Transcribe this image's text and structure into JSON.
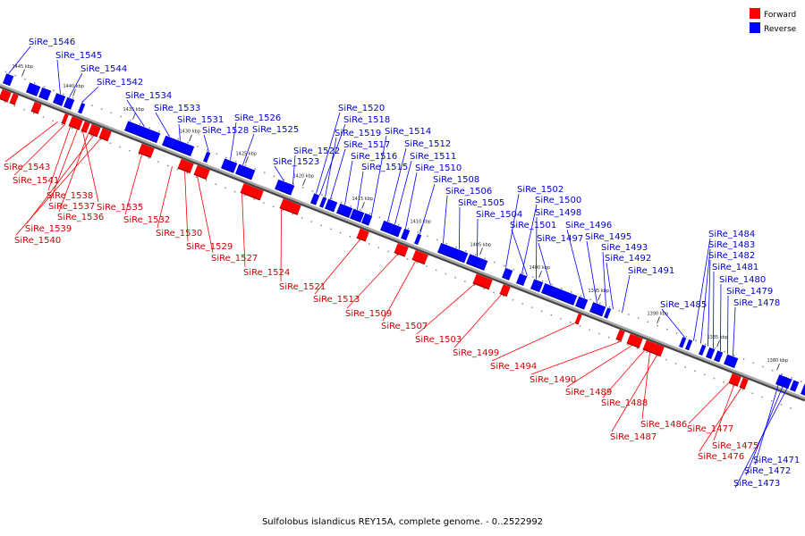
{
  "caption": "Sulfolobus islandicus REY15A, complete genome. - 0..2522992",
  "legend": [
    {
      "label": "Forward",
      "color": "#ff0000"
    },
    {
      "label": "Reverse",
      "color": "#0000ff"
    }
  ],
  "colors": {
    "forward": "#ff0000",
    "reverse": "#0000ff",
    "backbone": "#666666"
  },
  "ticks": [
    "1445 kbp",
    "1440 kbp",
    "1435 kbp",
    "1430 kbp",
    "1425 kbp",
    "1420 kbp",
    "1415 kbp",
    "1410 kbp",
    "1405 kbp",
    "1400 kbp",
    "1395 kbp",
    "1390 kbp",
    "1385 kbp",
    "1380 kbp"
  ],
  "genes": [
    {
      "name": "SiRe_1546",
      "strand": "reverse"
    },
    {
      "name": "SiRe_1545",
      "strand": "reverse"
    },
    {
      "name": "SiRe_1544",
      "strand": "reverse"
    },
    {
      "name": "SiRe_1542",
      "strand": "reverse"
    },
    {
      "name": "SiRe_1534",
      "strand": "reverse"
    },
    {
      "name": "SiRe_1533",
      "strand": "reverse"
    },
    {
      "name": "SiRe_1531",
      "strand": "reverse"
    },
    {
      "name": "SiRe_1528",
      "strand": "reverse"
    },
    {
      "name": "SiRe_1526",
      "strand": "reverse"
    },
    {
      "name": "SiRe_1525",
      "strand": "reverse"
    },
    {
      "name": "SiRe_1523",
      "strand": "reverse"
    },
    {
      "name": "SiRe_1522",
      "strand": "reverse"
    },
    {
      "name": "SiRe_1520",
      "strand": "reverse"
    },
    {
      "name": "SiRe_1518",
      "strand": "reverse"
    },
    {
      "name": "SiRe_1519",
      "strand": "reverse"
    },
    {
      "name": "SiRe_1517",
      "strand": "reverse"
    },
    {
      "name": "SiRe_1516",
      "strand": "reverse"
    },
    {
      "name": "SiRe_1515",
      "strand": "reverse"
    },
    {
      "name": "SiRe_1514",
      "strand": "reverse"
    },
    {
      "name": "SiRe_1512",
      "strand": "reverse"
    },
    {
      "name": "SiRe_1511",
      "strand": "reverse"
    },
    {
      "name": "SiRe_1510",
      "strand": "reverse"
    },
    {
      "name": "SiRe_1508",
      "strand": "reverse"
    },
    {
      "name": "SiRe_1506",
      "strand": "reverse"
    },
    {
      "name": "SiRe_1505",
      "strand": "reverse"
    },
    {
      "name": "SiRe_1504",
      "strand": "reverse"
    },
    {
      "name": "SiRe_1502",
      "strand": "reverse"
    },
    {
      "name": "SiRe_1500",
      "strand": "reverse"
    },
    {
      "name": "SiRe_1498",
      "strand": "reverse"
    },
    {
      "name": "SiRe_1501",
      "strand": "reverse"
    },
    {
      "name": "SiRe_1497",
      "strand": "reverse"
    },
    {
      "name": "SiRe_1496",
      "strand": "reverse"
    },
    {
      "name": "SiRe_1495",
      "strand": "reverse"
    },
    {
      "name": "SiRe_1493",
      "strand": "reverse"
    },
    {
      "name": "SiRe_1492",
      "strand": "reverse"
    },
    {
      "name": "SiRe_1491",
      "strand": "reverse"
    },
    {
      "name": "SiRe_1485",
      "strand": "reverse"
    },
    {
      "name": "SiRe_1484",
      "strand": "reverse"
    },
    {
      "name": "SiRe_1483",
      "strand": "reverse"
    },
    {
      "name": "SiRe_1482",
      "strand": "reverse"
    },
    {
      "name": "SiRe_1481",
      "strand": "reverse"
    },
    {
      "name": "SiRe_1480",
      "strand": "reverse"
    },
    {
      "name": "SiRe_1479",
      "strand": "reverse"
    },
    {
      "name": "SiRe_1478",
      "strand": "reverse"
    },
    {
      "name": "SiRe_1471",
      "strand": "reverse"
    },
    {
      "name": "SiRe_1472",
      "strand": "reverse"
    },
    {
      "name": "SiRe_1473",
      "strand": "reverse"
    },
    {
      "name": "SiRe_1543",
      "strand": "forward"
    },
    {
      "name": "SiRe_1541",
      "strand": "forward"
    },
    {
      "name": "SiRe_1538",
      "strand": "forward"
    },
    {
      "name": "SiRe_1537",
      "strand": "forward"
    },
    {
      "name": "SiRe_1535",
      "strand": "forward"
    },
    {
      "name": "SiRe_1536",
      "strand": "forward"
    },
    {
      "name": "SiRe_1539",
      "strand": "forward"
    },
    {
      "name": "SiRe_1540",
      "strand": "forward"
    },
    {
      "name": "SiRe_1532",
      "strand": "forward"
    },
    {
      "name": "SiRe_1530",
      "strand": "forward"
    },
    {
      "name": "SiRe_1529",
      "strand": "forward"
    },
    {
      "name": "SiRe_1527",
      "strand": "forward"
    },
    {
      "name": "SiRe_1524",
      "strand": "forward"
    },
    {
      "name": "SiRe_1521",
      "strand": "forward"
    },
    {
      "name": "SiRe_1513",
      "strand": "forward"
    },
    {
      "name": "SiRe_1509",
      "strand": "forward"
    },
    {
      "name": "SiRe_1507",
      "strand": "forward"
    },
    {
      "name": "SiRe_1503",
      "strand": "forward"
    },
    {
      "name": "SiRe_1499",
      "strand": "forward"
    },
    {
      "name": "SiRe_1494",
      "strand": "forward"
    },
    {
      "name": "SiRe_1490",
      "strand": "forward"
    },
    {
      "name": "SiRe_1489",
      "strand": "forward"
    },
    {
      "name": "SiRe_1488",
      "strand": "forward"
    },
    {
      "name": "SiRe_1486",
      "strand": "forward"
    },
    {
      "name": "SiRe_1487",
      "strand": "forward"
    },
    {
      "name": "SiRe_1477",
      "strand": "forward"
    },
    {
      "name": "SiRe_1475",
      "strand": "forward"
    },
    {
      "name": "SiRe_1476",
      "strand": "forward"
    }
  ]
}
